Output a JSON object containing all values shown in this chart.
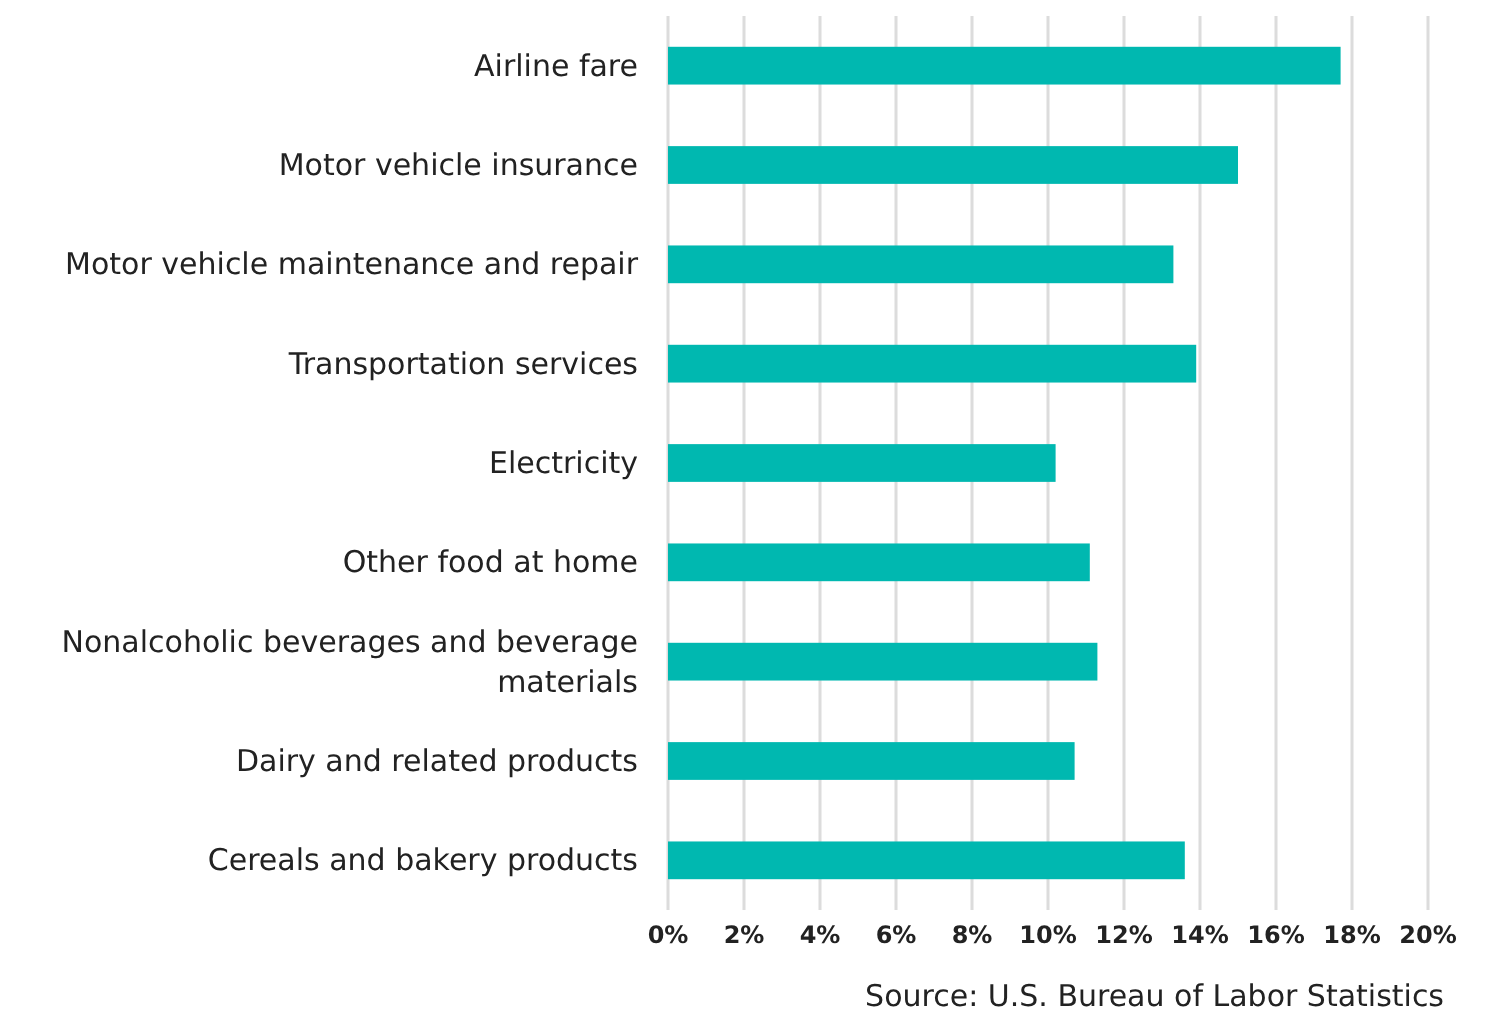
{
  "chart_data": {
    "type": "bar",
    "orientation": "horizontal",
    "categories": [
      "Airline fare",
      "Motor vehicle insurance",
      "Motor vehicle maintenance and repair",
      "Transportation services",
      "Electricity",
      "Other food at home",
      "Nonalcoholic beverages and beverage materials",
      "Dairy and related products",
      "Cereals and bakery products"
    ],
    "values": [
      17.7,
      15.0,
      13.3,
      13.9,
      10.2,
      11.1,
      11.3,
      10.7,
      13.6
    ],
    "color": "#00b8b0",
    "xlim": [
      0,
      20
    ],
    "xticks": [
      {
        "value": 0,
        "label": "0%"
      },
      {
        "value": 2,
        "label": "2%"
      },
      {
        "value": 4,
        "label": "4%"
      },
      {
        "value": 6,
        "label": "6%"
      },
      {
        "value": 8,
        "label": "8%"
      },
      {
        "value": 10,
        "label": "10%"
      },
      {
        "value": 12,
        "label": "12%"
      },
      {
        "value": 14,
        "label": "14%"
      },
      {
        "value": 16,
        "label": "16%"
      },
      {
        "value": 18,
        "label": "18%"
      },
      {
        "value": 20,
        "label": "20%"
      }
    ],
    "grid": "x",
    "annotations": [
      "Source: U.S. Bureau of Labor Statistics"
    ]
  }
}
